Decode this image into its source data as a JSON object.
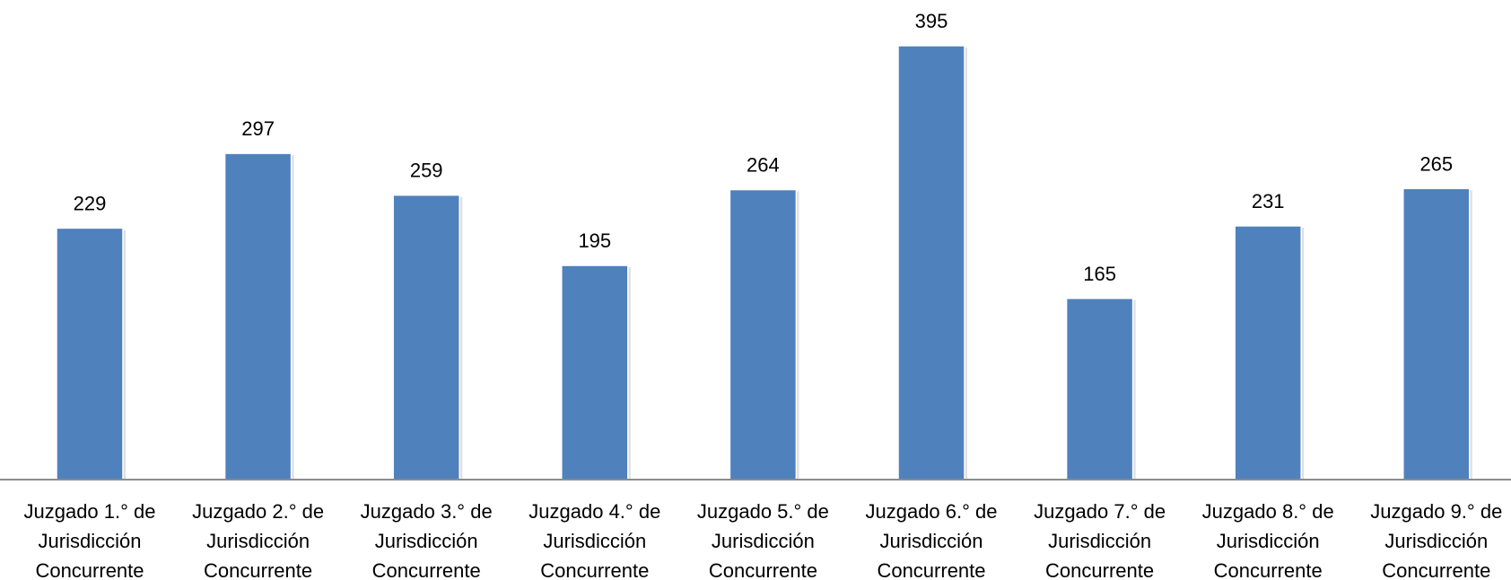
{
  "chart_data": {
    "type": "bar",
    "title": "",
    "xlabel": "",
    "ylabel": "",
    "ylim": [
      0,
      400
    ],
    "grid": false,
    "legend": "none",
    "color": "#4F81BD",
    "categories": [
      [
        "Juzgado 1.° de",
        "Jurisdicción",
        "Concurrente"
      ],
      [
        "Juzgado 2.° de",
        "Jurisdicción",
        "Concurrente"
      ],
      [
        "Juzgado 3.° de",
        "Jurisdicción",
        "Concurrente"
      ],
      [
        "Juzgado 4.° de",
        "Jurisdicción",
        "Concurrente"
      ],
      [
        "Juzgado 5.° de",
        "Jurisdicción",
        "Concurrente"
      ],
      [
        "Juzgado 6.° de",
        "Jurisdicción",
        "Concurrente"
      ],
      [
        "Juzgado 7.° de",
        "Jurisdicción",
        "Concurrente"
      ],
      [
        "Juzgado 8.° de",
        "Jurisdicción",
        "Concurrente"
      ],
      [
        "Juzgado 9.° de",
        "Jurisdicción",
        "Concurrente"
      ]
    ],
    "values": [
      229,
      297,
      259,
      195,
      264,
      395,
      165,
      231,
      265
    ]
  }
}
